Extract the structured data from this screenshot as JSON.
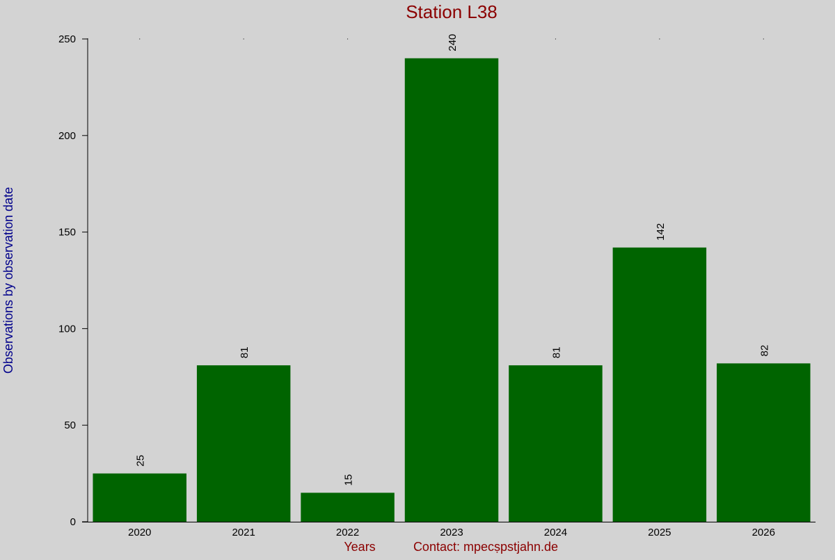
{
  "chart_data": {
    "type": "bar",
    "title": "Station L38",
    "xlabel": "Years",
    "ylabel": "Observations by observation date",
    "footer": "Contact: mpecṣpstjahn.de",
    "categories": [
      "2020",
      "2021",
      "2022",
      "2023",
      "2024",
      "2025",
      "2026"
    ],
    "values": [
      25,
      81,
      15,
      240,
      81,
      142,
      82
    ],
    "ylim": [
      0,
      250
    ],
    "yticks": [
      0,
      50,
      100,
      150,
      200,
      250
    ],
    "grid": false,
    "legend": "none"
  },
  "colors": {
    "background": "#d3d3d3",
    "bar": "#006400",
    "title": "#8b0000",
    "ylabel": "#00008b",
    "xlabel": "#8b0000",
    "footer": "#8b0000",
    "axis": "#000000",
    "text": "#000000"
  }
}
